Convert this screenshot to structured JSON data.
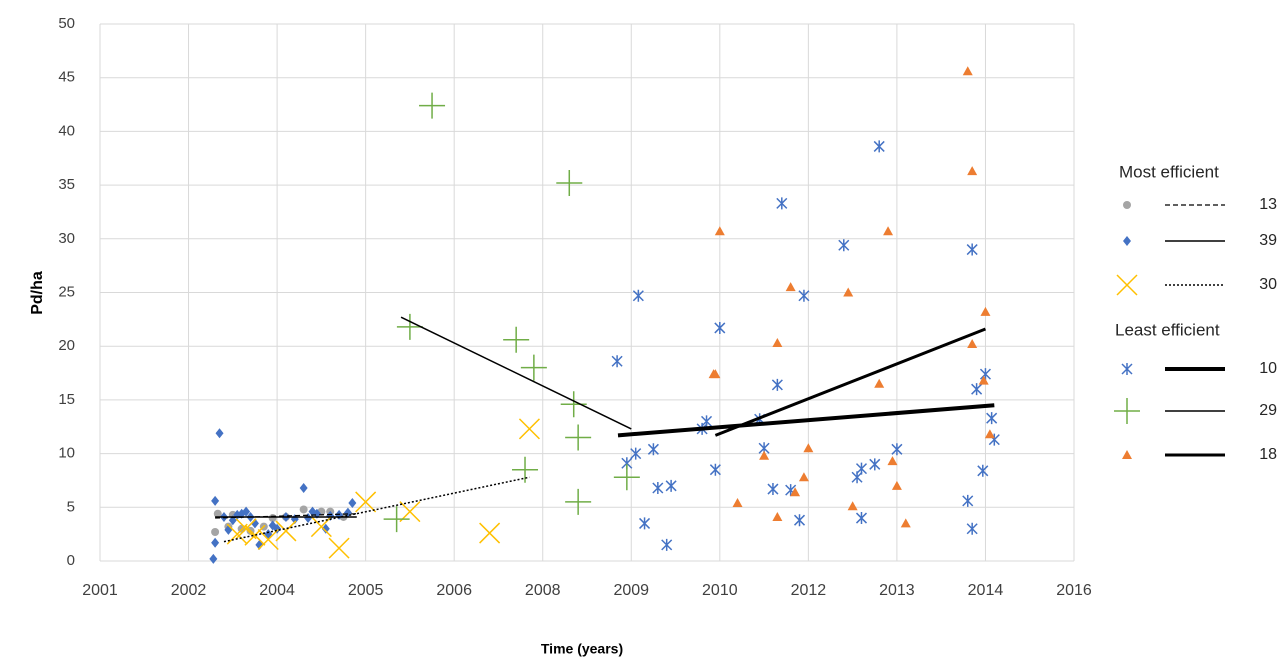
{
  "chart_data": {
    "type": "scatter",
    "y_label": "Pd/ha",
    "x_label": "Time (years)",
    "xlim": [
      0,
      11
    ],
    "xticks": [
      {
        "value": 0,
        "label": "2001"
      },
      {
        "value": 1,
        "label": "2002"
      },
      {
        "value": 2,
        "label": "2004"
      },
      {
        "value": 3,
        "label": "2005"
      },
      {
        "value": 4,
        "label": "2006"
      },
      {
        "value": 5,
        "label": "2008"
      },
      {
        "value": 6,
        "label": "2009"
      },
      {
        "value": 7,
        "label": "2010"
      },
      {
        "value": 8,
        "label": "2012"
      },
      {
        "value": 9,
        "label": "2013"
      },
      {
        "value": 10,
        "label": "2014"
      },
      {
        "value": 11,
        "label": "2016"
      }
    ],
    "ylim": [
      0,
      50
    ],
    "yticks": [
      0,
      5,
      10,
      15,
      20,
      25,
      30,
      35,
      40,
      45,
      50
    ],
    "grid": true,
    "legend_position": "right",
    "legend_titles": [
      "Most efficient",
      "Least efficient"
    ],
    "series": [
      {
        "name": "13",
        "color": "#a5a5a5",
        "marker": "circle",
        "line_style": "dashed",
        "line_width": 1.2,
        "x": [
          1.3,
          1.33,
          1.45,
          1.5,
          1.6,
          1.7,
          1.85,
          1.95,
          2.1,
          2.3,
          2.5,
          2.6,
          2.75
        ],
        "values": [
          2.7,
          4.4,
          3.2,
          4.3,
          3.0,
          2.8,
          3.2,
          4.0,
          4.1,
          4.8,
          4.6,
          4.6,
          4.1
        ],
        "trend": {
          "x": [
            1.3,
            2.9
          ],
          "y": [
            4.0,
            4.4
          ]
        }
      },
      {
        "name": "39",
        "color": "#4472c4",
        "marker": "diamond",
        "line_style": "solid",
        "line_width": 1.5,
        "x": [
          1.28,
          1.3,
          1.3,
          1.35,
          1.4,
          1.45,
          1.5,
          1.55,
          1.6,
          1.65,
          1.7,
          1.75,
          1.8,
          1.9,
          1.95,
          2.0,
          2.1,
          2.2,
          2.3,
          2.35,
          2.4,
          2.45,
          2.55,
          2.6,
          2.7,
          2.8,
          2.85
        ],
        "values": [
          0.2,
          1.7,
          5.6,
          11.9,
          4.1,
          2.9,
          3.8,
          4.3,
          4.4,
          4.6,
          4.1,
          3.5,
          1.5,
          2.5,
          3.3,
          3.0,
          4.1,
          3.9,
          6.8,
          4.0,
          4.6,
          4.4,
          3.0,
          4.2,
          4.3,
          4.5,
          5.4
        ],
        "trend": {
          "x": [
            1.3,
            2.9
          ],
          "y": [
            4.1,
            4.1
          ]
        }
      },
      {
        "name": "30",
        "color": "#ffc000",
        "marker": "x",
        "line_style": "dotted",
        "line_width": 1.5,
        "x": [
          1.55,
          1.65,
          1.75,
          1.9,
          2.1,
          2.5,
          2.7,
          3.0,
          3.5,
          4.4,
          4.85
        ],
        "values": [
          2.5,
          3.0,
          2.4,
          2.0,
          2.8,
          3.2,
          1.2,
          5.5,
          4.6,
          2.6,
          12.3
        ],
        "trend": {
          "x": [
            1.4,
            4.85
          ],
          "y": [
            1.8,
            7.8
          ]
        }
      },
      {
        "name": "10",
        "color": "#4472c4",
        "marker": "asterisk",
        "line_style": "solid",
        "line_width": 4,
        "x": [
          5.84,
          5.95,
          6.05,
          6.08,
          6.15,
          6.25,
          6.3,
          6.4,
          6.45,
          6.8,
          6.85,
          6.95,
          7.0,
          7.45,
          7.5,
          7.6,
          7.65,
          7.7,
          7.8,
          7.9,
          7.95,
          8.4,
          8.55,
          8.6,
          8.6,
          8.75,
          8.8,
          9.0,
          9.8,
          9.85,
          9.85,
          9.9,
          9.97,
          10.0,
          10.07,
          10.1
        ],
        "values": [
          18.6,
          9.1,
          10.0,
          24.7,
          3.5,
          10.4,
          6.8,
          1.5,
          7.0,
          12.3,
          13.0,
          8.5,
          21.7,
          13.2,
          10.5,
          6.7,
          16.4,
          33.3,
          6.6,
          3.8,
          24.7,
          29.4,
          7.8,
          8.6,
          4.0,
          9.0,
          38.6,
          10.4,
          5.6,
          3.0,
          29.0,
          16.0,
          8.4,
          17.4,
          13.3,
          11.3
        ],
        "trend": {
          "x": [
            5.85,
            10.1
          ],
          "y": [
            11.7,
            14.5
          ]
        }
      },
      {
        "name": "29",
        "color": "#70ad47",
        "marker": "plus",
        "line_style": "solid",
        "line_width": 1.5,
        "x": [
          3.35,
          3.5,
          3.75,
          4.7,
          4.8,
          4.9,
          5.3,
          5.35,
          5.4,
          5.4,
          5.95
        ],
        "values": [
          3.9,
          21.8,
          42.4,
          20.6,
          8.5,
          18.0,
          35.2,
          14.6,
          11.5,
          5.5,
          7.8
        ],
        "trend": {
          "x": [
            3.4,
            6.0
          ],
          "y": [
            22.7,
            12.3
          ]
        }
      },
      {
        "name": "18",
        "color": "#ed7d31",
        "marker": "triangle",
        "line_style": "solid",
        "line_width": 3,
        "x": [
          6.93,
          6.95,
          7.0,
          7.2,
          7.5,
          7.65,
          7.65,
          7.8,
          7.85,
          7.95,
          8.0,
          8.45,
          8.5,
          8.8,
          8.9,
          8.95,
          9.0,
          9.1,
          9.8,
          9.85,
          9.85,
          9.98,
          10.0,
          10.05
        ],
        "values": [
          17.4,
          17.4,
          30.7,
          5.4,
          9.8,
          4.1,
          20.3,
          25.5,
          6.4,
          7.8,
          10.5,
          25.0,
          5.1,
          16.5,
          30.7,
          9.3,
          7.0,
          3.5,
          45.6,
          36.3,
          20.2,
          16.8,
          23.2,
          11.8
        ],
        "trend": {
          "x": [
            6.95,
            10.0
          ],
          "y": [
            11.7,
            21.6
          ]
        }
      }
    ]
  }
}
